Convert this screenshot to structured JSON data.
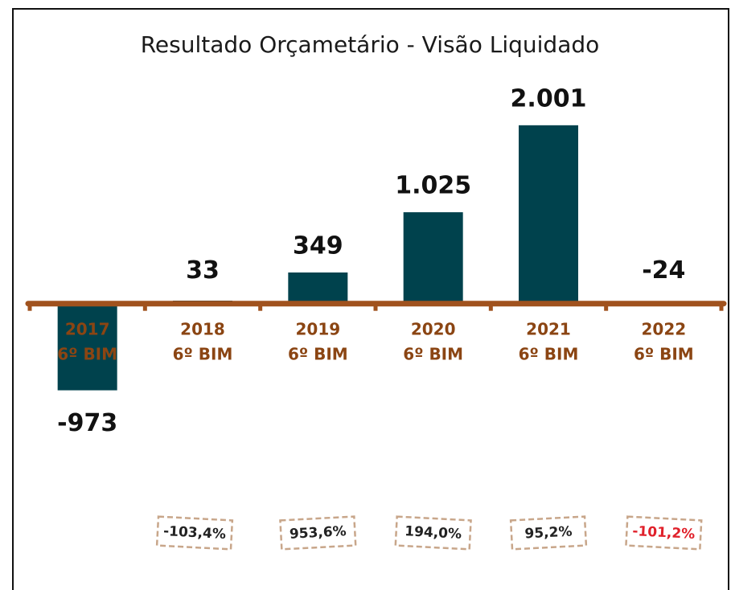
{
  "chart_data": {
    "type": "bar",
    "title": "Resultado Orçametário - Visão Liquidado",
    "categories": [
      [
        "2017",
        "6º BIM"
      ],
      [
        "2018",
        "6º BIM"
      ],
      [
        "2019",
        "6º BIM"
      ],
      [
        "2020",
        "6º BIM"
      ],
      [
        "2021",
        "6º BIM"
      ],
      [
        "2022",
        "6º BIM"
      ]
    ],
    "values": [
      -973,
      33,
      349,
      1025,
      2001,
      -24
    ],
    "value_labels": [
      "-973",
      "33",
      "349",
      "1.025",
      "2.001",
      "-24"
    ],
    "color": "#00424d",
    "ylim": [
      -1500,
      2400
    ],
    "annotations": [
      {
        "text": "-103,4%",
        "color": "#222222"
      },
      {
        "text": "953,6%",
        "color": "#222222"
      },
      {
        "text": "194,0%",
        "color": "#222222"
      },
      {
        "text": "95,2%",
        "color": "#222222"
      },
      {
        "text": "-101,2%",
        "color": "#e0202a"
      }
    ]
  }
}
